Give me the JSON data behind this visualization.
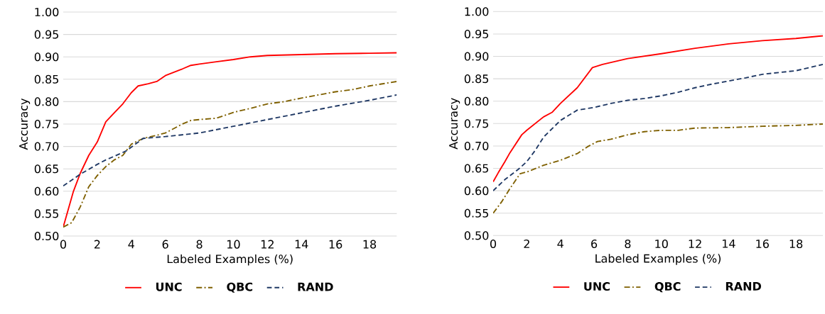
{
  "chart_data": [
    {
      "type": "line",
      "xlabel": "Labeled Examples (%)",
      "ylabel": "Accuracy",
      "xlim": [
        0,
        19.6
      ],
      "ylim": [
        0.5,
        1.0
      ],
      "xticks": [
        0,
        2,
        4,
        6,
        8,
        10,
        12,
        14,
        16,
        18
      ],
      "yticks": [
        {
          "value": 0.5,
          "label": "0.50"
        },
        {
          "value": 0.55,
          "label": "0.55"
        },
        {
          "value": 0.6,
          "label": "0.60"
        },
        {
          "value": 0.65,
          "label": "0.65"
        },
        {
          "value": 0.7,
          "label": "0.70"
        },
        {
          "value": 0.75,
          "label": "0.75"
        },
        {
          "value": 0.8,
          "label": "0.80"
        },
        {
          "value": 0.85,
          "label": "0.85"
        },
        {
          "value": 0.9,
          "label": "0.90"
        },
        {
          "value": 0.95,
          "label": "0.95"
        },
        {
          "value": 1.0,
          "label": "1.00"
        }
      ],
      "grid": "y",
      "legend": "bottom",
      "marker": "none",
      "series": [
        {
          "name": "UNC",
          "color": "#ff0000",
          "line_style": "solid",
          "x": [
            0,
            0.3,
            0.6,
            1,
            1.5,
            2,
            2.5,
            3,
            3.5,
            4,
            4.4,
            5,
            5.5,
            6,
            7,
            7.5,
            8,
            9,
            10,
            11,
            12,
            14,
            16,
            18,
            19.6
          ],
          "values": [
            0.52,
            0.56,
            0.6,
            0.64,
            0.68,
            0.71,
            0.755,
            0.775,
            0.795,
            0.82,
            0.835,
            0.84,
            0.845,
            0.858,
            0.873,
            0.881,
            0.884,
            0.889,
            0.894,
            0.9,
            0.903,
            0.905,
            0.907,
            0.908,
            0.909
          ]
        },
        {
          "name": "QBC",
          "color": "#7f6000",
          "line_style": "dashdot",
          "x": [
            0,
            0.5,
            1,
            1.5,
            2,
            2.5,
            3,
            3.5,
            4,
            4.7,
            5.5,
            6,
            7,
            7.5,
            8,
            9,
            10,
            11,
            12,
            13,
            14,
            15,
            16,
            17,
            18,
            19.6
          ],
          "values": [
            0.52,
            0.53,
            0.565,
            0.61,
            0.635,
            0.655,
            0.67,
            0.68,
            0.705,
            0.718,
            0.725,
            0.73,
            0.75,
            0.758,
            0.76,
            0.763,
            0.776,
            0.785,
            0.795,
            0.8,
            0.808,
            0.815,
            0.822,
            0.827,
            0.835,
            0.845
          ]
        },
        {
          "name": "RAND",
          "color": "#1f3864",
          "line_style": "dashed",
          "x": [
            0,
            1,
            2,
            2.5,
            3,
            3.7,
            4.7,
            6,
            8,
            10,
            12,
            14,
            16,
            18,
            19.6
          ],
          "values": [
            0.612,
            0.638,
            0.66,
            0.67,
            0.678,
            0.69,
            0.718,
            0.722,
            0.73,
            0.745,
            0.76,
            0.775,
            0.79,
            0.803,
            0.815
          ]
        }
      ]
    },
    {
      "type": "line",
      "xlabel": "Labeled Examples (%)",
      "ylabel": "Accuracy",
      "xlim": [
        0,
        19.6
      ],
      "ylim": [
        0.5,
        1.0
      ],
      "xticks": [
        0,
        2,
        4,
        6,
        8,
        10,
        12,
        14,
        16,
        18
      ],
      "yticks": [
        {
          "value": 0.5,
          "label": "0.50"
        },
        {
          "value": 0.55,
          "label": "0.55"
        },
        {
          "value": 0.6,
          "label": "0.60"
        },
        {
          "value": 0.65,
          "label": "0.65"
        },
        {
          "value": 0.7,
          "label": "0.70"
        },
        {
          "value": 0.75,
          "label": "0.75"
        },
        {
          "value": 0.8,
          "label": "0.80"
        },
        {
          "value": 0.85,
          "label": "0.85"
        },
        {
          "value": 0.9,
          "label": "0.90"
        },
        {
          "value": 0.95,
          "label": "0.95"
        },
        {
          "value": 1.0,
          "label": "1.00"
        }
      ],
      "grid": "y",
      "legend": "bottom",
      "marker": "none",
      "series": [
        {
          "name": "UNC",
          "color": "#ff0000",
          "line_style": "solid",
          "x": [
            0,
            0.3,
            0.7,
            1,
            1.7,
            2,
            3,
            3.5,
            4,
            5,
            5.9,
            6.5,
            8,
            10,
            12,
            14,
            16,
            18,
            19.6
          ],
          "values": [
            0.62,
            0.64,
            0.665,
            0.685,
            0.725,
            0.735,
            0.765,
            0.775,
            0.795,
            0.83,
            0.875,
            0.882,
            0.895,
            0.906,
            0.918,
            0.928,
            0.935,
            0.94,
            0.946
          ]
        },
        {
          "name": "QBC",
          "color": "#7f6000",
          "line_style": "dashdot",
          "x": [
            0,
            0.5,
            1,
            1.6,
            2,
            3,
            4,
            5,
            5.6,
            6.2,
            7,
            8,
            9,
            10,
            11,
            12,
            14,
            16,
            18,
            19.6
          ],
          "values": [
            0.55,
            0.575,
            0.605,
            0.638,
            0.642,
            0.657,
            0.668,
            0.683,
            0.698,
            0.71,
            0.715,
            0.725,
            0.732,
            0.735,
            0.735,
            0.74,
            0.741,
            0.744,
            0.746,
            0.749
          ]
        },
        {
          "name": "RAND",
          "color": "#1f3864",
          "line_style": "dashed",
          "x": [
            0,
            0.7,
            1.5,
            2,
            2.5,
            3,
            4,
            5,
            6,
            7,
            8,
            9,
            10,
            11,
            12,
            13,
            14,
            15,
            16,
            18,
            19.6
          ],
          "values": [
            0.6,
            0.625,
            0.648,
            0.665,
            0.69,
            0.72,
            0.757,
            0.78,
            0.786,
            0.795,
            0.802,
            0.806,
            0.812,
            0.82,
            0.83,
            0.838,
            0.845,
            0.852,
            0.86,
            0.868,
            0.882
          ]
        }
      ]
    }
  ]
}
